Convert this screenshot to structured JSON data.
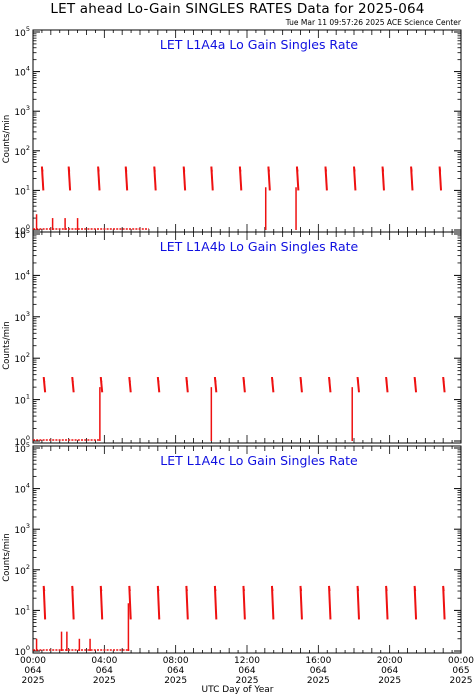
{
  "header": {
    "title": "LET ahead Lo-Gain SINGLES RATES Data for 2025-064",
    "timestamp": "Tue Mar 11 09:57:26 2025 ACE Science Center"
  },
  "xaxis": {
    "title": "UTC Day of Year",
    "ticks": [
      {
        "hour": 0,
        "time": "00:00",
        "doy": "064",
        "year": "2025"
      },
      {
        "hour": 4,
        "time": "04:00",
        "doy": "064",
        "year": "2025"
      },
      {
        "hour": 8,
        "time": "08:00",
        "doy": "064",
        "year": "2025"
      },
      {
        "hour": 12,
        "time": "12:00",
        "doy": "064",
        "year": "2025"
      },
      {
        "hour": 16,
        "time": "16:00",
        "doy": "064",
        "year": "2025"
      },
      {
        "hour": 20,
        "time": "20:00",
        "doy": "064",
        "year": "2025"
      },
      {
        "hour": 24,
        "time": "00:00",
        "doy": "065",
        "year": "2025"
      }
    ]
  },
  "colors": {
    "data": "#ee1111",
    "panel_title": "#1010e0",
    "axes": "#000000"
  },
  "chart_data": [
    {
      "type": "scatter",
      "title": "LET L1A4a Lo Gain Singles Rate",
      "ylabel": "Counts/min",
      "yscale": "log",
      "xlim": [
        0,
        24
      ],
      "ylim": [
        1,
        100000
      ],
      "ytick_labels": [
        "10^0",
        "10^1",
        "10^2",
        "10^3",
        "10^4",
        "10^5"
      ],
      "x_unit": "hours UTC",
      "periodic_bursts": {
        "start_hours": [
          0.5,
          2.0,
          3.65,
          5.2,
          6.8,
          8.45,
          10.0,
          11.6,
          13.2,
          14.8,
          16.4,
          18.0,
          19.6,
          21.2,
          22.8
        ],
        "peak": 40,
        "low": 10
      },
      "spikes": [
        {
          "x": 0.2,
          "y": 2.5
        },
        {
          "x": 1.1,
          "y": 2
        },
        {
          "x": 1.8,
          "y": 2
        },
        {
          "x": 2.5,
          "y": 2
        },
        {
          "x": 13.05,
          "y": 12
        },
        {
          "x": 14.75,
          "y": 12
        }
      ],
      "baseline": {
        "from": 0,
        "to": 6.5,
        "y": 1
      }
    },
    {
      "type": "scatter",
      "title": "LET L1A4b Lo Gain Singles Rate",
      "ylabel": "Counts/min",
      "yscale": "log",
      "xlim": [
        0,
        24
      ],
      "ylim": [
        1,
        100000
      ],
      "ytick_labels": [
        "10^0",
        "10^1",
        "10^2",
        "10^3",
        "10^4",
        "10^5"
      ],
      "x_unit": "hours UTC",
      "periodic_bursts": {
        "start_hours": [
          0.6,
          2.2,
          3.8,
          5.4,
          7.0,
          8.6,
          10.2,
          11.8,
          13.4,
          15.0,
          16.6,
          18.2,
          19.8,
          21.4,
          23.0
        ],
        "peak": 35,
        "low": 15
      },
      "spikes": [
        {
          "x": 3.75,
          "y": 20
        },
        {
          "x": 10.0,
          "y": 20
        },
        {
          "x": 17.9,
          "y": 20
        }
      ],
      "baseline": {
        "from": 0,
        "to": 3.7,
        "y": 1
      }
    },
    {
      "type": "scatter",
      "title": "LET L1A4c Lo Gain Singles Rate",
      "ylabel": "Counts/min",
      "yscale": "log",
      "xlim": [
        0,
        24
      ],
      "ylim": [
        1,
        100000
      ],
      "ytick_labels": [
        "10^0",
        "10^1",
        "10^2",
        "10^3",
        "10^4",
        "10^5"
      ],
      "x_unit": "hours UTC",
      "periodic_bursts": {
        "start_hours": [
          0.6,
          2.2,
          3.8,
          5.4,
          7.0,
          8.6,
          10.2,
          11.8,
          13.4,
          15.0,
          16.6,
          18.2,
          19.8,
          21.4,
          23.0
        ],
        "peak": 40,
        "low": 6
      },
      "spikes": [
        {
          "x": 0.2,
          "y": 2
        },
        {
          "x": 1.6,
          "y": 3
        },
        {
          "x": 1.9,
          "y": 3
        },
        {
          "x": 2.6,
          "y": 2
        },
        {
          "x": 3.2,
          "y": 2
        },
        {
          "x": 5.35,
          "y": 15
        }
      ],
      "baseline": {
        "from": 0,
        "to": 5.4,
        "y": 1
      }
    }
  ]
}
